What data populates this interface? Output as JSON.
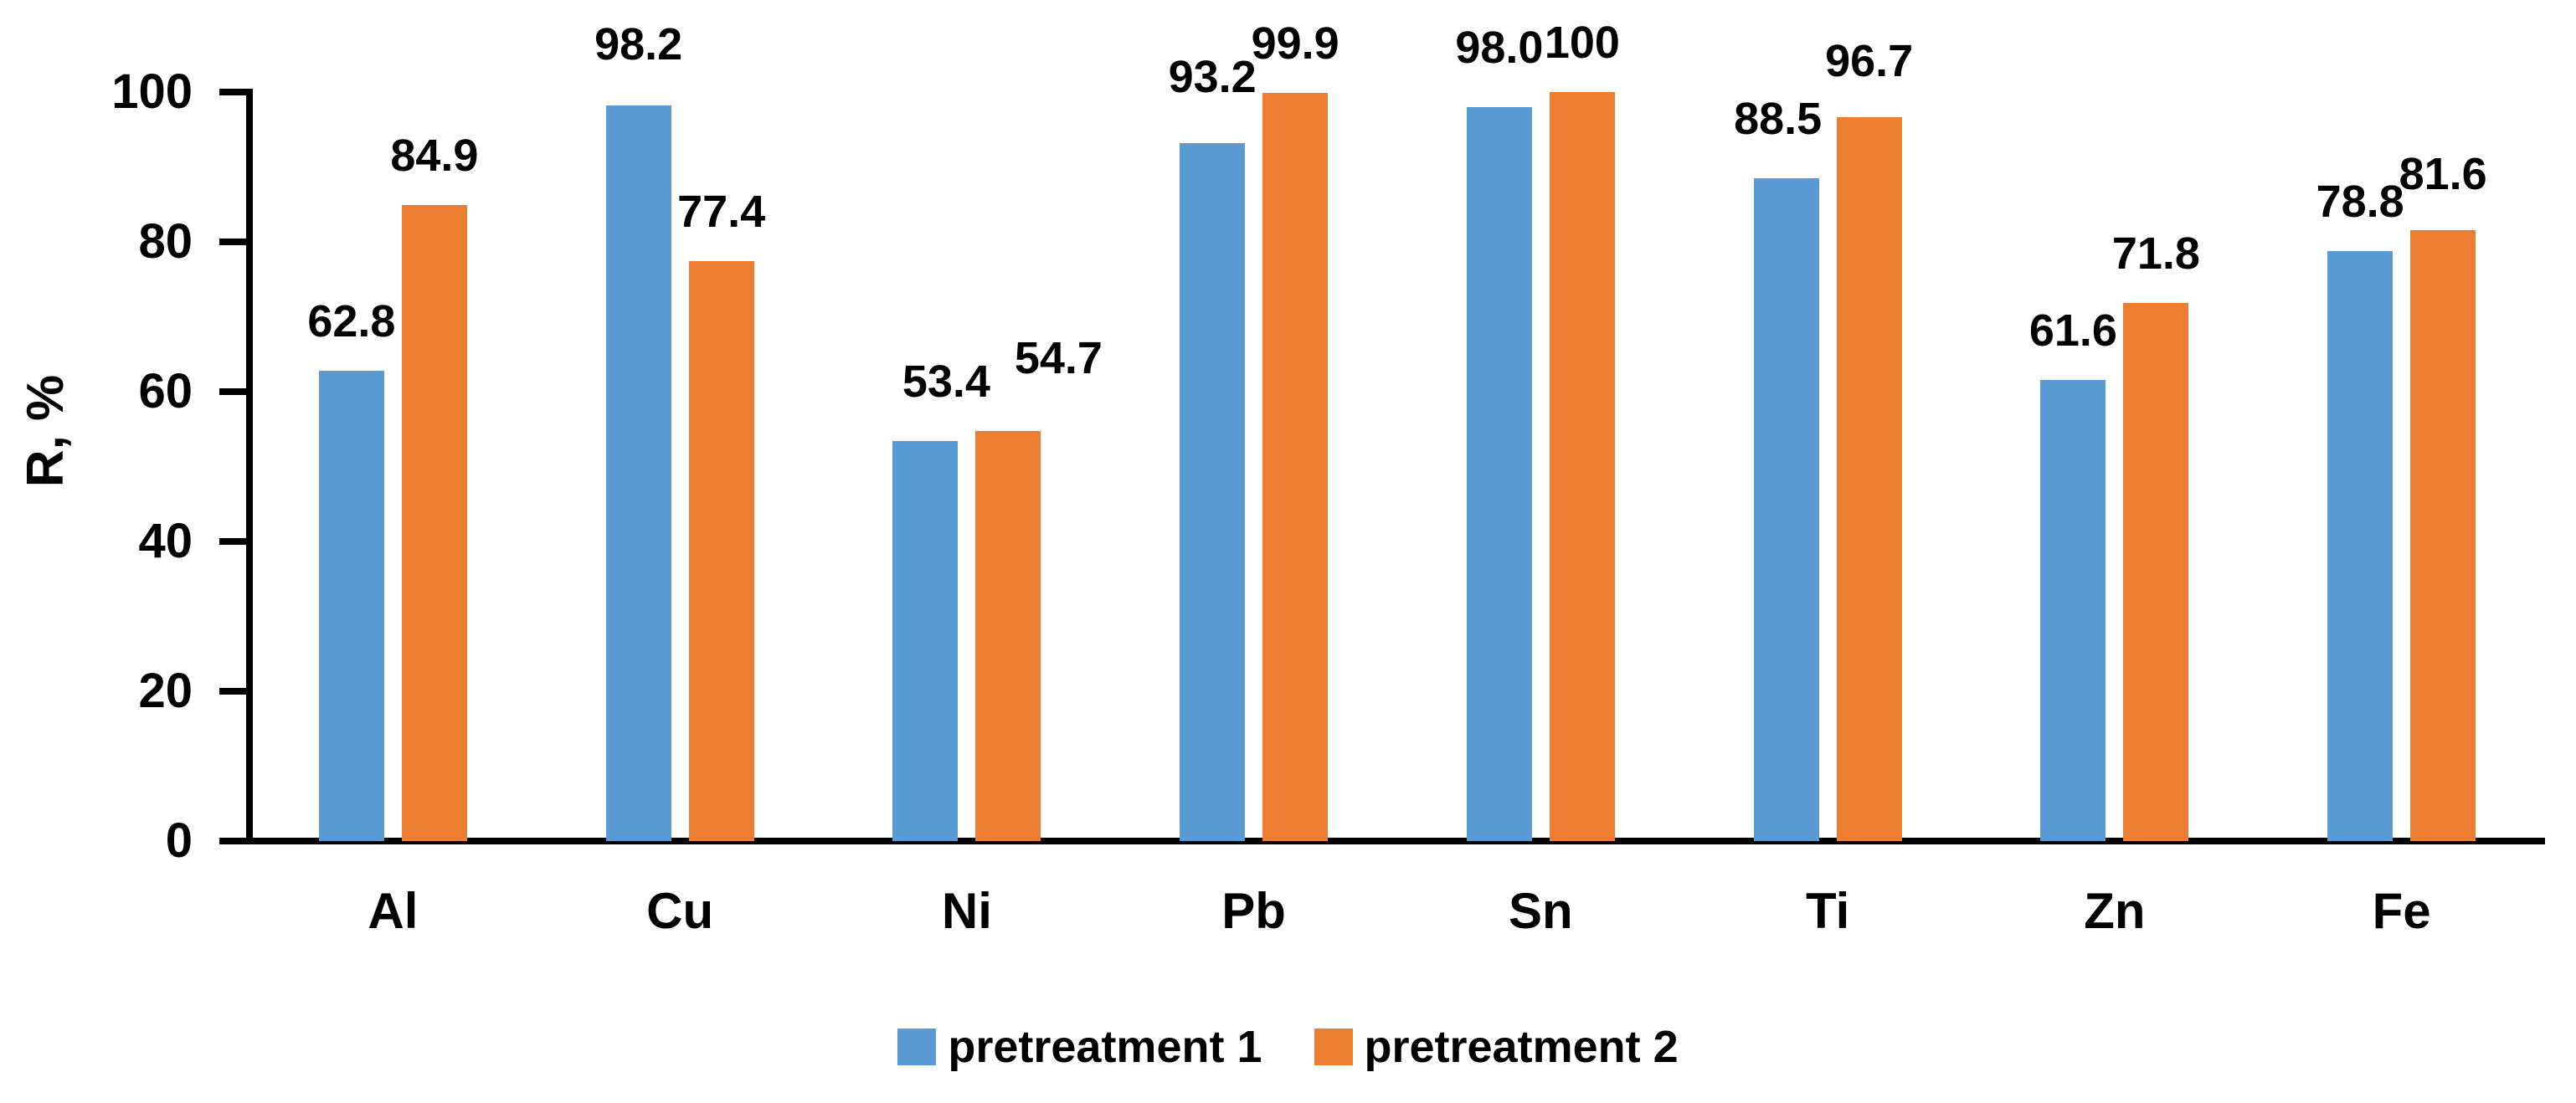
{
  "chart_data": {
    "type": "bar",
    "ylabel": "R, %",
    "xlabel": "",
    "ylim": [
      0,
      100
    ],
    "yticks": [
      0,
      20,
      40,
      60,
      80,
      100
    ],
    "grid": false,
    "legend_position": "bottom-center",
    "background_color": "#FFFFFF",
    "axis_color": "#000000",
    "text_color": "#000000",
    "categories": [
      "Al",
      "Cu",
      "Ni",
      "Pb",
      "Sn",
      "Ti",
      "Zn",
      "Fe"
    ],
    "series": [
      {
        "name": "pretreatment 1",
        "color": "#5B9BD5",
        "values": [
          62.8,
          98.2,
          53.4,
          93.2,
          98.0,
          88.5,
          61.6,
          78.8
        ],
        "labels": [
          "62.8",
          "98.2",
          "53.4",
          "93.2",
          "98.0",
          "88.5",
          "61.6",
          "78.8"
        ],
        "label_offsets": [
          [
            0,
            0
          ],
          [
            0,
            -14
          ],
          [
            25,
            -12
          ],
          [
            0,
            -20
          ],
          [
            0,
            -12
          ],
          [
            -10,
            -12
          ],
          [
            0,
            0
          ],
          [
            0,
            0
          ]
        ]
      },
      {
        "name": "pretreatment 2",
        "color": "#ED7D31",
        "values": [
          84.9,
          77.4,
          54.7,
          99.9,
          100,
          96.7,
          71.8,
          81.6
        ],
        "labels": [
          "84.9",
          "77.4",
          "54.7",
          "99.9",
          "100",
          "96.7",
          "71.8",
          "81.6"
        ],
        "label_offsets": [
          [
            0,
            0
          ],
          [
            0,
            0
          ],
          [
            60,
            -28
          ],
          [
            0,
            0
          ],
          [
            0,
            0
          ],
          [
            0,
            -8
          ],
          [
            0,
            0
          ],
          [
            0,
            -8
          ]
        ]
      }
    ]
  }
}
